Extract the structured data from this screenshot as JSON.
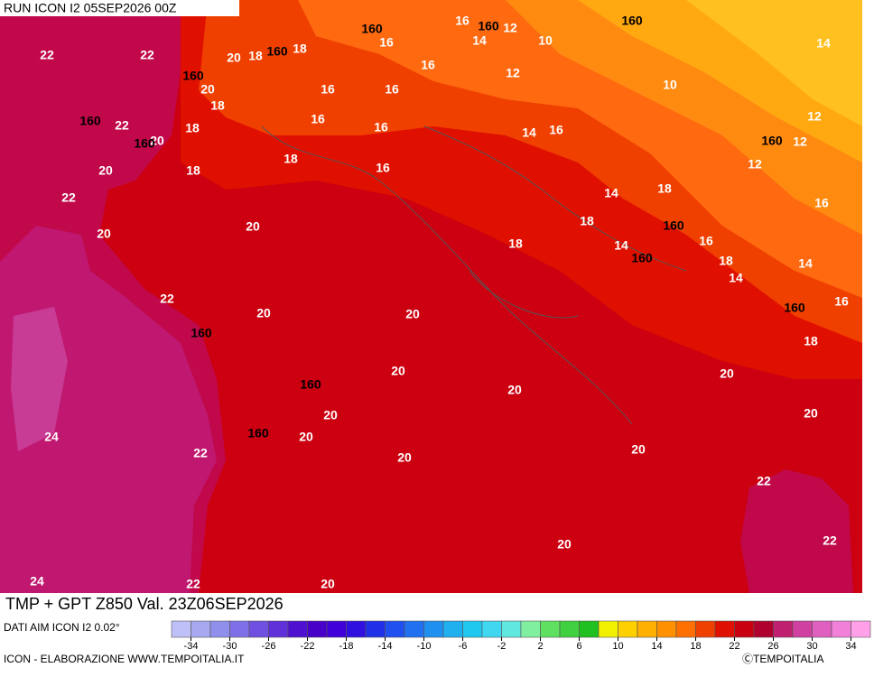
{
  "header": {
    "run": "RUN ICON I2 05SEP2026 00Z",
    "title": "TMP + GPT Z850 Val. 23Z06SEP2026"
  },
  "footer": {
    "source": "DATI AIM ICON I2 0.02°",
    "credit": "ICON - ELABORAZIONE WWW.TEMPOITALIA.IT",
    "copyright": "ⒸTEMPOITALIA"
  },
  "colorbar": {
    "range": [
      -36,
      36
    ],
    "colors": [
      "#c0c0f8",
      "#a8a8f0",
      "#9090ec",
      "#8070e8",
      "#7050e0",
      "#6030d8",
      "#5010d0",
      "#4800c8",
      "#4000d8",
      "#3010e0",
      "#2030e8",
      "#2050f0",
      "#2070f0",
      "#2090f0",
      "#20b0f0",
      "#20c8f0",
      "#40d8f0",
      "#60e8e0",
      "#80f0a0",
      "#60e060",
      "#40d040",
      "#20c020",
      "#f0f000",
      "#ffd000",
      "#ffb000",
      "#ff9000",
      "#ff7000",
      "#f04000",
      "#e01000",
      "#c80010",
      "#b00030",
      "#c02070",
      "#d040a0",
      "#e060c0",
      "#f080d8",
      "#ffa0e8"
    ],
    "ticks": [
      -34,
      -30,
      -26,
      -22,
      -18,
      -14,
      -10,
      -6,
      -2,
      2,
      6,
      10,
      14,
      18,
      22,
      26,
      30,
      34
    ]
  },
  "temperature_labels": [
    22,
    22,
    22,
    20,
    22,
    22,
    24,
    22,
    24,
    22,
    20,
    20,
    20,
    20,
    20,
    20,
    20,
    20,
    20,
    20,
    20,
    20,
    20,
    22,
    22,
    20,
    20,
    20,
    20,
    18,
    18,
    18,
    20,
    18,
    18,
    18,
    16,
    16,
    16,
    16,
    16,
    16,
    16,
    16,
    14,
    12,
    10,
    14,
    12,
    10,
    12,
    12,
    12,
    16,
    14,
    16,
    14,
    18,
    18,
    18,
    14,
    16,
    18,
    14,
    14,
    16,
    18
  ],
  "geopotential_labels": [
    160,
    160,
    160,
    160,
    160,
    160,
    160,
    160,
    160,
    160,
    160,
    160,
    160,
    160
  ]
}
